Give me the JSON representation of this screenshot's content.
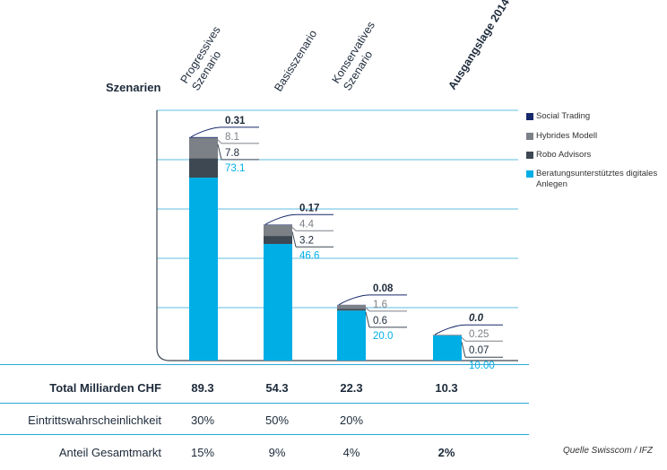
{
  "chart_data": {
    "type": "bar",
    "stacked": true,
    "ylabel": "Szenarien",
    "categories": [
      "Progressives Szenario",
      "Basisszenario",
      "Konservatives Szenario",
      "Ausgangslage 2014"
    ],
    "series": [
      {
        "name": "Beratungsunterstütztes digitales Anlegen",
        "color": "#00aee6",
        "values": [
          73.1,
          46.6,
          20.0,
          10.0
        ],
        "labels": [
          "73.1",
          "46.6",
          "20.0",
          "10.00"
        ]
      },
      {
        "name": "Robo Advisors",
        "color": "#3d4853",
        "values": [
          7.8,
          3.2,
          0.6,
          0.07
        ],
        "labels": [
          "7.8",
          "3.2",
          "0.6",
          "0.07"
        ]
      },
      {
        "name": "Hybrides Modell",
        "color": "#7c8087",
        "values": [
          8.1,
          4.4,
          1.6,
          0.25
        ],
        "labels": [
          "8.1",
          "4.4",
          "1.6",
          "0.25"
        ]
      },
      {
        "name": "Social Trading",
        "color": "#15286b",
        "values": [
          0.31,
          0.17,
          0.08,
          0.0
        ],
        "labels": [
          "0.31",
          "0.17",
          "0.08",
          "0.0"
        ]
      }
    ],
    "legend": [
      "Social Trading",
      "Hybrides Modell",
      "Robo Advisors",
      "Beratungsunterstütztes digitales Anlegen"
    ],
    "legend_position": "right"
  },
  "table": {
    "rows": [
      {
        "label": "Total Milliarden CHF",
        "bold": true,
        "values": [
          "89.3",
          "54.3",
          "22.3",
          "10.3"
        ]
      },
      {
        "label": "Eintrittswahrscheinlichkeit",
        "bold": false,
        "values": [
          "30%",
          "50%",
          "20%",
          ""
        ]
      },
      {
        "label": "Anteil Gesamtmarkt",
        "bold": false,
        "values": [
          "15%",
          "9%",
          "4%",
          "2%"
        ]
      }
    ]
  },
  "source": "Quelle Swisscom / IFZ",
  "colors": {
    "cyan": "#00aee6",
    "navy": "#15286b",
    "grid": "#2aa8d8",
    "gray": "#7c8087",
    "dark": "#3d4853"
  }
}
